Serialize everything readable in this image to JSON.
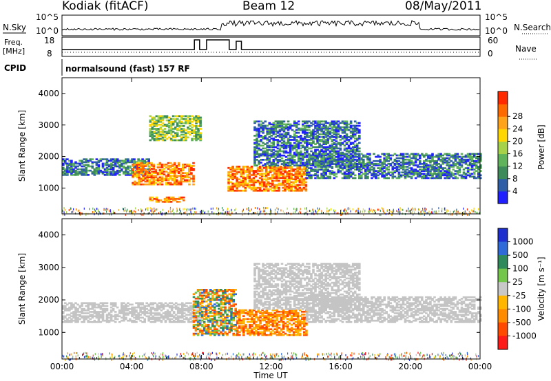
{
  "header": {
    "station": "Kodiak (fitACF)",
    "beam": "Beam 12",
    "date": "08/May/2011"
  },
  "top_panels": {
    "nsky_label": "N.Sky",
    "nsky_ticks": [
      "10^5",
      "10^0"
    ],
    "nsearch_label": "N.Search",
    "nsearch_ticks": [
      "10^5",
      "10^0"
    ],
    "freq_label_1": "Freq.",
    "freq_label_2": "[MHz]",
    "freq_ticks": [
      "18",
      "8"
    ],
    "nave_label": "Nave",
    "nave_ticks": [
      "60",
      "0"
    ],
    "cpid_label": "CPID",
    "cpid_text": "normalsound (fast) 157 RF"
  },
  "colors": {
    "power_scale": [
      "#2020ff",
      "#2e5fa6",
      "#3d8a5a",
      "#5fb35a",
      "#a6d24a",
      "#ffd700",
      "#ffa31a",
      "#ff6a00",
      "#ff2a00"
    ],
    "velocity_scale": [
      "#1e2fd0",
      "#2e6ad8",
      "#2e8a5a",
      "#74c64a",
      "#c8c8c8",
      "#ffb600",
      "#ff8c00",
      "#ff4a00",
      "#ff1a1a"
    ],
    "ground_scatter": "#c4c4c4",
    "axes": "#000000"
  },
  "chart_data": [
    {
      "type": "heatmap",
      "name": "power",
      "xlabel": "",
      "ylabel": "Slant Range [km]",
      "xlim": [
        "00:00",
        "24:00"
      ],
      "ylim": [
        180,
        4500
      ],
      "y_ticks": [
        "1000",
        "2000",
        "3000",
        "4000"
      ],
      "colorbar_label": "Power [dB]",
      "colorbar_ticks": [
        "4",
        "8",
        "12",
        "16",
        "20",
        "24",
        "28"
      ],
      "regions": [
        {
          "t": [
            0,
            5
          ],
          "range": [
            1400,
            1900
          ],
          "level": "low-mid"
        },
        {
          "t": [
            4,
            7.5
          ],
          "range": [
            1100,
            1800
          ],
          "level": "high"
        },
        {
          "t": [
            5,
            7
          ],
          "range": [
            550,
            700
          ],
          "level": "high"
        },
        {
          "t": [
            9.5,
            14
          ],
          "range": [
            900,
            1700
          ],
          "level": "high"
        },
        {
          "t": [
            11,
            17
          ],
          "range": [
            1700,
            3100
          ],
          "level": "low-mid"
        },
        {
          "t": [
            14,
            24
          ],
          "range": [
            1300,
            2100
          ],
          "level": "low-mid"
        },
        {
          "t": [
            5,
            8
          ],
          "range": [
            2500,
            3300
          ],
          "level": "mid"
        }
      ]
    },
    {
      "type": "heatmap",
      "name": "velocity",
      "xlabel": "Time UT",
      "ylabel": "Slant Range [km]",
      "xlim": [
        "00:00",
        "24:00"
      ],
      "ylim": [
        180,
        4500
      ],
      "x_ticks": [
        "00:00",
        "04:00",
        "08:00",
        "12:00",
        "16:00",
        "20:00",
        "00:00"
      ],
      "y_ticks": [
        "1000",
        "2000",
        "3000",
        "4000"
      ],
      "colorbar_label": "Velocity [m s⁻¹]",
      "colorbar_ticks": [
        "1000",
        "500",
        "100",
        "25",
        "-25",
        "-100",
        "-500",
        "-1000"
      ],
      "regions": [
        {
          "t": [
            0,
            8
          ],
          "range": [
            1300,
            1900
          ],
          "class": "ground-scatter"
        },
        {
          "t": [
            7.5,
            10
          ],
          "range": [
            900,
            2300
          ],
          "class": "negative-mixed"
        },
        {
          "t": [
            10,
            14
          ],
          "range": [
            900,
            1700
          ],
          "class": "negative"
        },
        {
          "t": [
            11,
            17
          ],
          "range": [
            1700,
            3100
          ],
          "class": "ground-scatter"
        },
        {
          "t": [
            14,
            24
          ],
          "range": [
            1300,
            2100
          ],
          "class": "ground-scatter"
        }
      ]
    }
  ]
}
